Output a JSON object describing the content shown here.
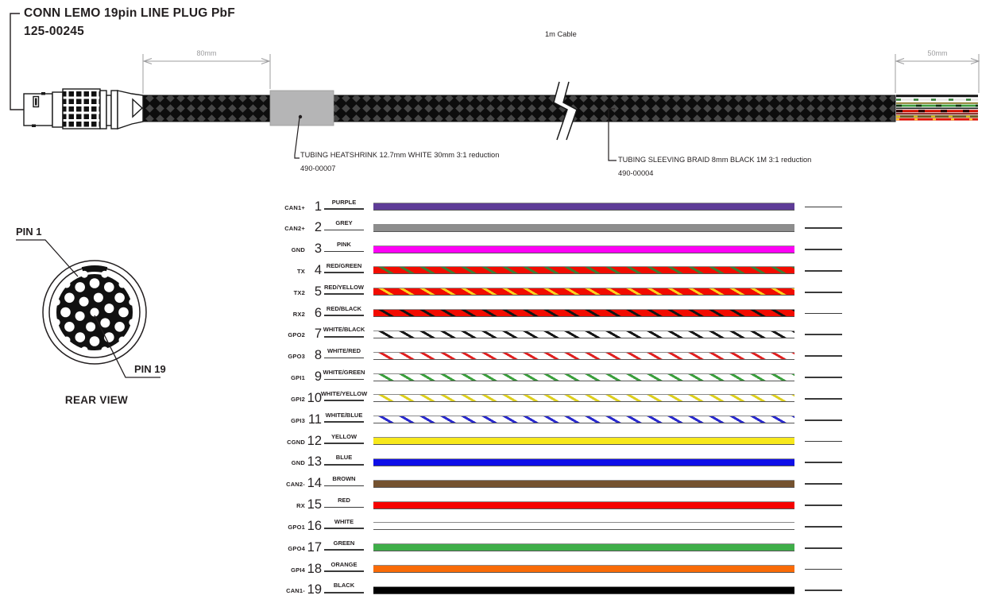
{
  "header": {
    "connector_title": "CONN LEMO 19pin LINE PLUG PbF",
    "connector_part_number": "125-00245",
    "cable_length_label": "1m Cable"
  },
  "dimensions": {
    "left_dim": "80mm",
    "right_dim": "50mm"
  },
  "callouts": {
    "heatshrink_label": "TUBING HEATSHRINK 12.7mm WHITE 30mm 3:1 reduction",
    "heatshrink_part_number": "490-00007",
    "braid_label": "TUBING SLEEVING BRAID 8mm BLACK 1M 3:1 reduction",
    "braid_part_number": "490-00004"
  },
  "rear_view": {
    "pin1_label": "PIN 1",
    "pin19_label": "PIN 19",
    "caption": "REAR VIEW"
  },
  "colors": {
    "ink": "#231f20",
    "dim_grey": "#9c9c9e",
    "braid_dark": "#0d0d0d",
    "braid_diamond": "#474747",
    "heatshrink_grey": "#b5b5b6"
  },
  "wire_table": {
    "rows": [
      {
        "signal": "CAN1+",
        "pin": "1",
        "color_name": "PURPLE",
        "base": "#5e3c97",
        "stripe": null
      },
      {
        "signal": "CAN2+",
        "pin": "2",
        "color_name": "GREY",
        "base": "#8d8d8d",
        "stripe": null
      },
      {
        "signal": "GND",
        "pin": "3",
        "color_name": "PINK",
        "base": "#ff00f6",
        "stripe": null
      },
      {
        "signal": "TX",
        "pin": "4",
        "color_name": "RED/GREEN",
        "base": "#f20c00",
        "stripe": "#3e7d31"
      },
      {
        "signal": "TX2",
        "pin": "5",
        "color_name": "RED/YELLOW",
        "base": "#f20c00",
        "stripe": "#ffd21e"
      },
      {
        "signal": "RX2",
        "pin": "6",
        "color_name": "RED/BLACK",
        "base": "#f20c00",
        "stripe": "#141414"
      },
      {
        "signal": "GPO2",
        "pin": "7",
        "color_name": "WHITE/BLACK",
        "base": "#ffffff",
        "stripe": "#141414"
      },
      {
        "signal": "GPO3",
        "pin": "8",
        "color_name": "WHITE/RED",
        "base": "#ffffff",
        "stripe": "#e02020"
      },
      {
        "signal": "GPI1",
        "pin": "9",
        "color_name": "WHITE/GREEN",
        "base": "#ffffff",
        "stripe": "#3a9e3c"
      },
      {
        "signal": "GPI2",
        "pin": "10",
        "color_name": "WHITE/YELLOW",
        "base": "#ffffff",
        "stripe": "#ddcf1e"
      },
      {
        "signal": "GPI3",
        "pin": "11",
        "color_name": "WHITE/BLUE",
        "base": "#ffffff",
        "stripe": "#2828cc"
      },
      {
        "signal": "CGND",
        "pin": "12",
        "color_name": "YELLOW",
        "base": "#f7e81c",
        "stripe": null
      },
      {
        "signal": "GND",
        "pin": "13",
        "color_name": "BLUE",
        "base": "#0f0fe8",
        "stripe": null
      },
      {
        "signal": "CAN2-",
        "pin": "14",
        "color_name": "BROWN",
        "base": "#74522f",
        "stripe": null
      },
      {
        "signal": "RX",
        "pin": "15",
        "color_name": "RED",
        "base": "#f60300",
        "stripe": null
      },
      {
        "signal": "GPO1",
        "pin": "16",
        "color_name": "WHITE",
        "base": "#ffffff",
        "stripe": null
      },
      {
        "signal": "GPO4",
        "pin": "17",
        "color_name": "GREEN",
        "base": "#3fae49",
        "stripe": null
      },
      {
        "signal": "GPI4",
        "pin": "18",
        "color_name": "ORANGE",
        "base": "#f96b07",
        "stripe": null
      },
      {
        "signal": "CAN1-",
        "pin": "19",
        "color_name": "BLACK",
        "base": "#000000",
        "stripe": null
      }
    ]
  }
}
